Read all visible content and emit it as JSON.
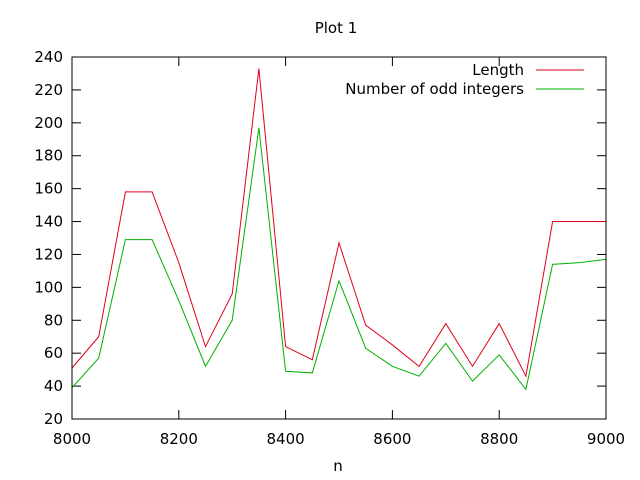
{
  "chart_data": {
    "type": "line",
    "title": "Plot 1",
    "xlabel": "n",
    "ylabel": "",
    "xlim": [
      8000,
      9000
    ],
    "ylim": [
      20,
      240
    ],
    "xticks": [
      8000,
      8200,
      8400,
      8600,
      8800,
      9000
    ],
    "yticks": [
      20,
      40,
      60,
      80,
      100,
      120,
      140,
      160,
      180,
      200,
      220,
      240
    ],
    "grid": false,
    "legend_position": "top-right",
    "x": [
      8000,
      8050,
      8100,
      8150,
      8200,
      8250,
      8300,
      8350,
      8400,
      8450,
      8500,
      8550,
      8600,
      8650,
      8700,
      8750,
      8800,
      8850,
      8900,
      8950,
      9000
    ],
    "series": [
      {
        "name": "Length",
        "color": "#e0001b",
        "values": [
          51,
          70,
          158,
          158,
          115,
          64,
          96,
          233,
          64,
          56,
          127,
          77,
          65,
          52,
          78,
          52,
          78,
          46,
          140,
          140,
          140
        ]
      },
      {
        "name": "Number of odd integers",
        "color": "#00b000",
        "values": [
          39,
          57,
          129,
          129,
          92,
          52,
          80,
          197,
          49,
          48,
          104,
          63,
          52,
          46,
          66,
          43,
          59,
          38,
          114,
          115,
          117
        ]
      }
    ]
  }
}
